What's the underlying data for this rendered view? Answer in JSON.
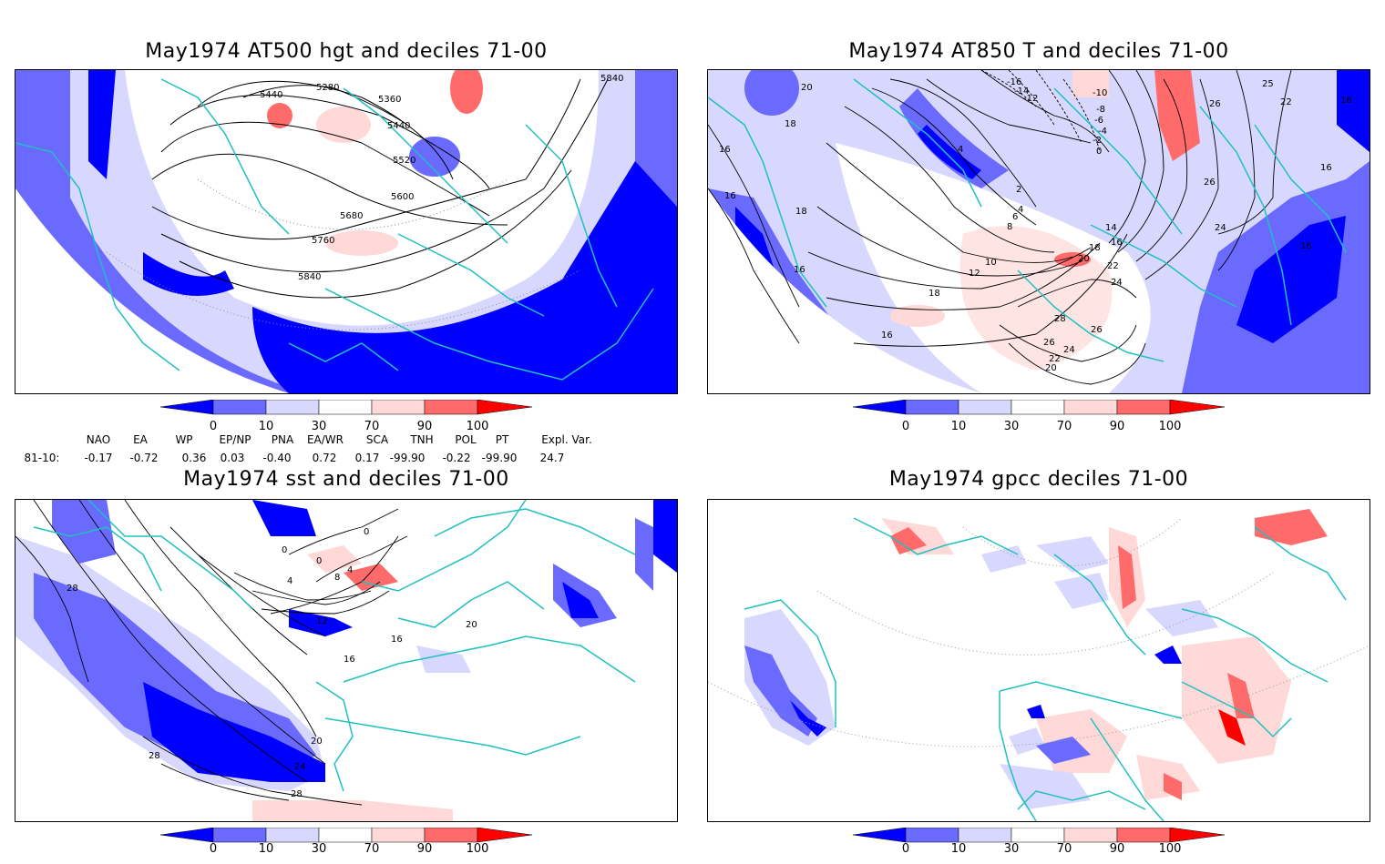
{
  "panels": [
    {
      "id": "at500",
      "title": "May1974 AT500 hgt and deciles 71-00",
      "contour_labels": [
        "5440",
        "5280",
        "5360",
        "5840",
        "5440",
        "5520",
        "5600",
        "5680",
        "5760",
        "5840"
      ]
    },
    {
      "id": "at850",
      "title": "May1974 AT850 T and deciles 71-00",
      "contour_labels": [
        "20",
        "18",
        "16",
        "18",
        "16",
        "-16",
        "-14",
        "-12",
        "-10",
        "-8",
        "-6",
        "-4",
        "-2",
        "0",
        "4",
        "2",
        "4",
        "6",
        "8",
        "10",
        "12",
        "14",
        "16",
        "18",
        "20",
        "22",
        "24",
        "26",
        "28",
        "26",
        "24",
        "22",
        "20",
        "18",
        "16",
        "16",
        "26",
        "25",
        "22",
        "18",
        "16",
        "16",
        "24",
        "26"
      ]
    },
    {
      "id": "sst",
      "title": "May1974 sst and deciles 71-00",
      "contour_labels": [
        "28",
        "0",
        "0",
        "0",
        "4",
        "8",
        "4",
        "12",
        "16",
        "16",
        "20",
        "20",
        "24",
        "28",
        "28"
      ]
    },
    {
      "id": "gpcc",
      "title": "May1974 gpcc deciles 71-00",
      "contour_labels": []
    }
  ],
  "colorbar": {
    "ticks": [
      "0",
      "10",
      "30",
      "70",
      "90",
      "100"
    ],
    "colors": [
      "#0000ff",
      "#6a6aff",
      "#d8d8ff",
      "#ffffff",
      "#ffd8d8",
      "#ff6a6a",
      "#ff0000"
    ]
  },
  "teleconnections": {
    "row_label": "81-10:",
    "columns": [
      {
        "name": "NAO",
        "value": "-0.17"
      },
      {
        "name": "EA",
        "value": "-0.72"
      },
      {
        "name": "WP",
        "value": "0.36"
      },
      {
        "name": "EP/NP",
        "value": "0.03"
      },
      {
        "name": "PNA",
        "value": "-0.40"
      },
      {
        "name": "EA/WR",
        "value": "0.72"
      },
      {
        "name": "SCA",
        "value": "0.17"
      },
      {
        "name": "TNH",
        "value": "-99.90"
      },
      {
        "name": "POL",
        "value": "-0.22"
      },
      {
        "name": "PT",
        "value": "-99.90"
      },
      {
        "name": "Expl. Var.",
        "value": "24.7"
      }
    ]
  },
  "colors": {
    "coastline": "#20c0c0",
    "contour": "#000000"
  }
}
